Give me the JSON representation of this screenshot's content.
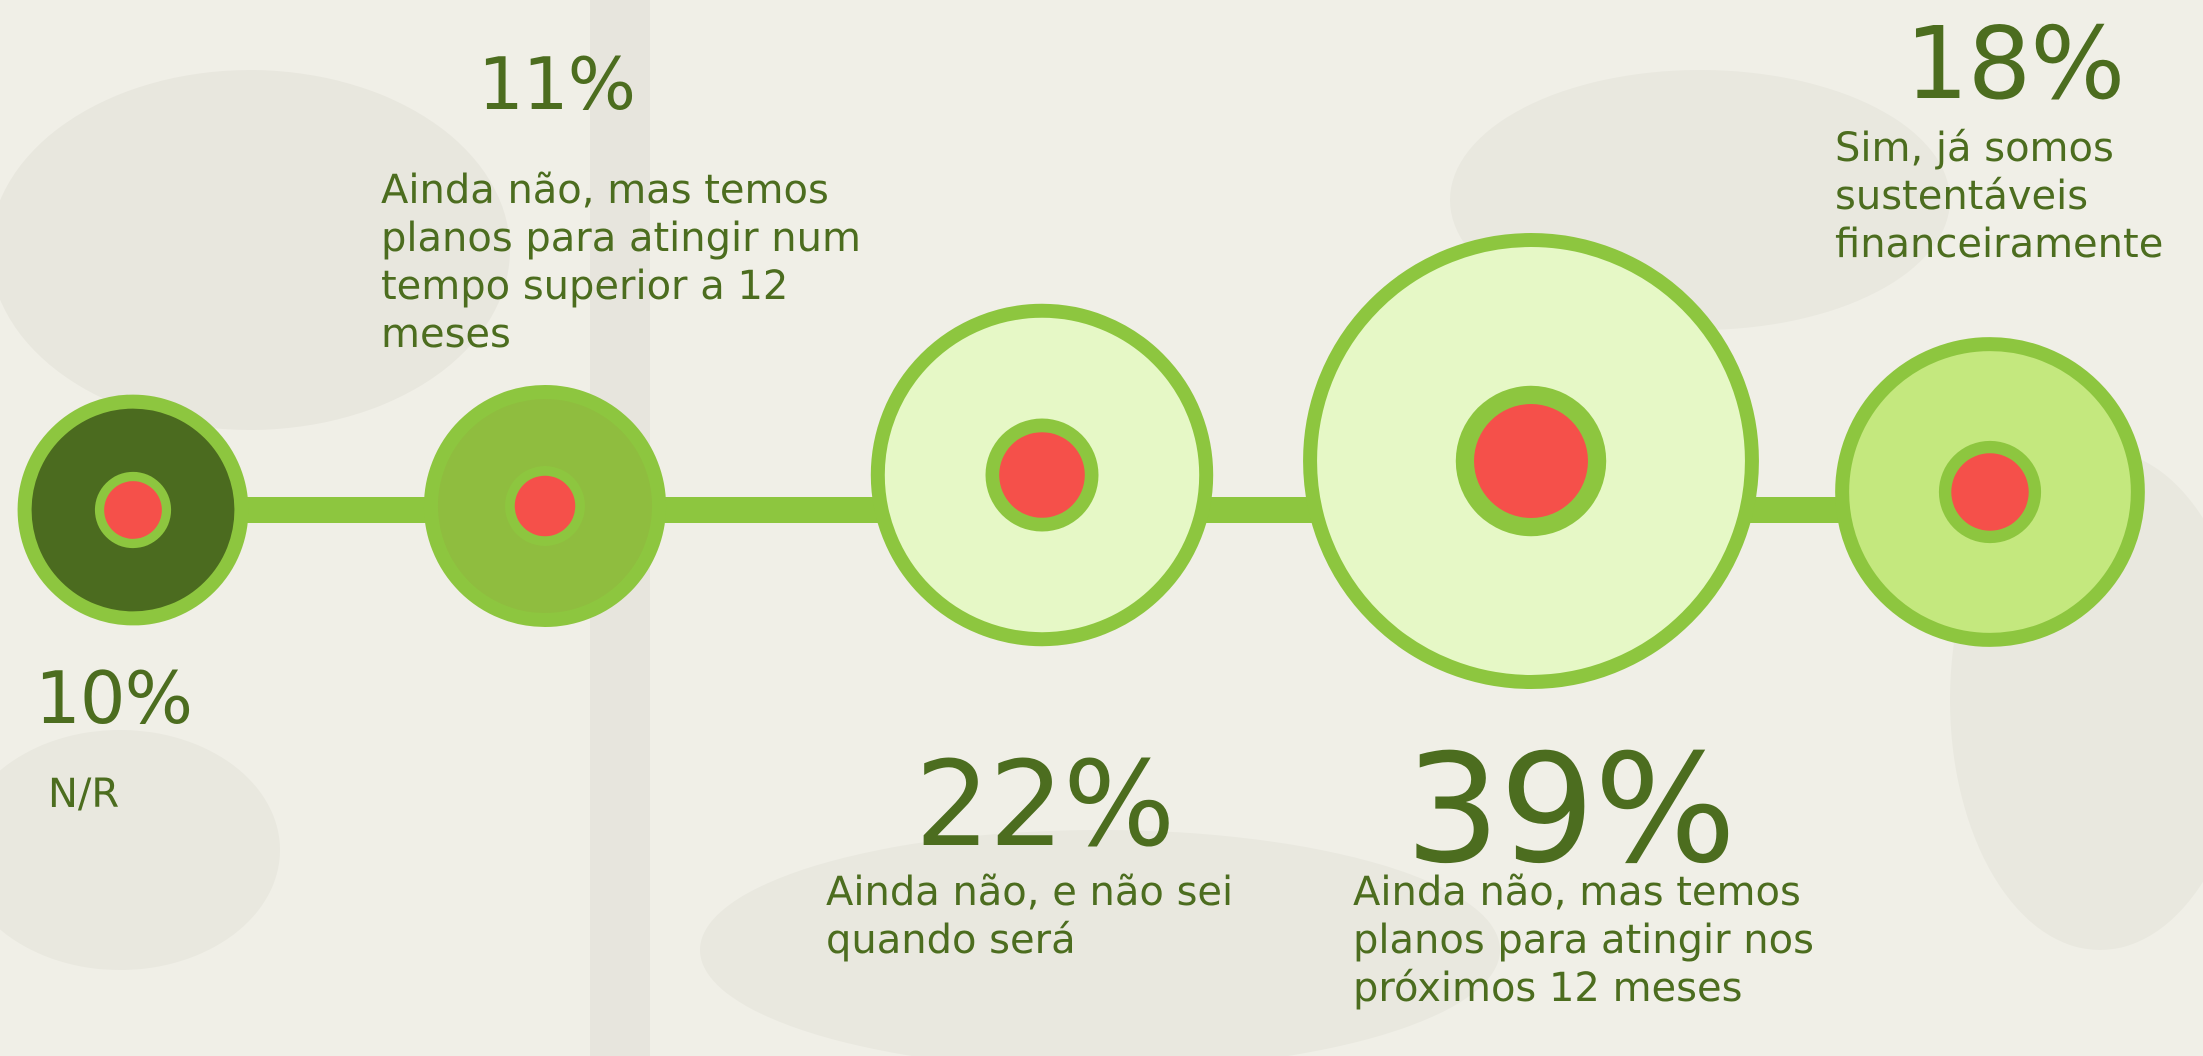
{
  "chart_data": {
    "type": "bubble",
    "categories": [
      "N/R",
      "Ainda não, mas temos planos para atingir num tempo superior a 12 meses",
      "Ainda não, e não sei quando será",
      "Ainda não, mas temos planos para atingir nos próximos 12 meses",
      "Sim, já somos sustentáveis financeiramente"
    ],
    "values": [
      10,
      11,
      22,
      39,
      18
    ],
    "value_labels": [
      "10%",
      "11%",
      "22%",
      "39%",
      "18%"
    ],
    "colors": [
      "#4b6b1f",
      "#8fbd3f",
      "#e6f8c6",
      "#e6f8c6",
      "#c4e87e"
    ],
    "ring_color": "#8dc63f",
    "dot_color": "#f5504a"
  }
}
